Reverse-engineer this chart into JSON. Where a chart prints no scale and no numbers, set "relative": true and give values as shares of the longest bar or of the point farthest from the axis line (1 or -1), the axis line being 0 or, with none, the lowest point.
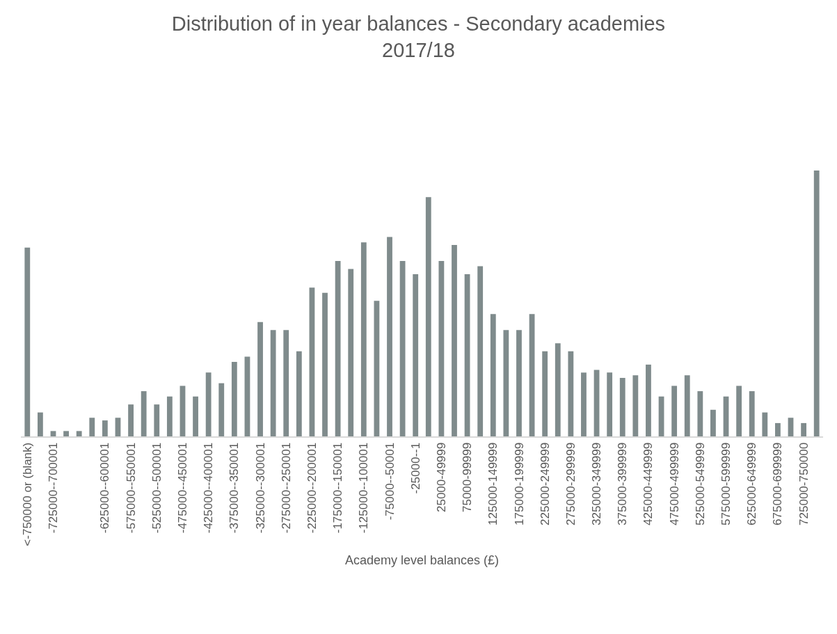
{
  "chart_data": {
    "type": "bar",
    "title": "Distribution of in year balances - Secondary academies\n2017/18",
    "xlabel": "Academy level balances (£)",
    "relative": true,
    "color": "#7f8b8c",
    "categories": [
      "<-750000 or (blank)",
      null,
      "-725000--700001",
      null,
      null,
      null,
      "-625000--600001",
      null,
      "-575000--550001",
      null,
      "-525000--500001",
      null,
      "-475000--450001",
      null,
      "-425000--400001",
      null,
      "-375000--350001",
      null,
      "-325000--300001",
      null,
      "-275000--250001",
      null,
      "-225000--200001",
      null,
      "-175000--150001",
      null,
      "-125000--100001",
      null,
      "-75000--50001",
      null,
      "-25000--1",
      null,
      "25000-49999",
      null,
      "75000-99999",
      null,
      "125000-149999",
      null,
      "175000-199999",
      null,
      "225000-249999",
      null,
      "275000-299999",
      null,
      "325000-349999",
      null,
      "375000-399999",
      null,
      "425000-449999",
      null,
      "475000-499999",
      null,
      "525000-549999",
      null,
      "575000-599999",
      null,
      "625000-649999",
      null,
      "675000-699999",
      null,
      "725000-750000",
      null
    ],
    "values": [
      0.71,
      0.09,
      0.02,
      0.02,
      0.02,
      0.07,
      0.06,
      0.07,
      0.12,
      0.17,
      0.12,
      0.15,
      0.19,
      0.15,
      0.24,
      0.2,
      0.28,
      0.3,
      0.43,
      0.4,
      0.4,
      0.32,
      0.56,
      0.54,
      0.66,
      0.63,
      0.73,
      0.51,
      0.75,
      0.66,
      0.61,
      0.9,
      0.66,
      0.72,
      0.61,
      0.64,
      0.46,
      0.4,
      0.4,
      0.46,
      0.32,
      0.35,
      0.32,
      0.24,
      0.25,
      0.24,
      0.22,
      0.23,
      0.27,
      0.15,
      0.19,
      0.23,
      0.17,
      0.1,
      0.15,
      0.19,
      0.17,
      0.09,
      0.05,
      0.07,
      0.05,
      1.0
    ]
  }
}
